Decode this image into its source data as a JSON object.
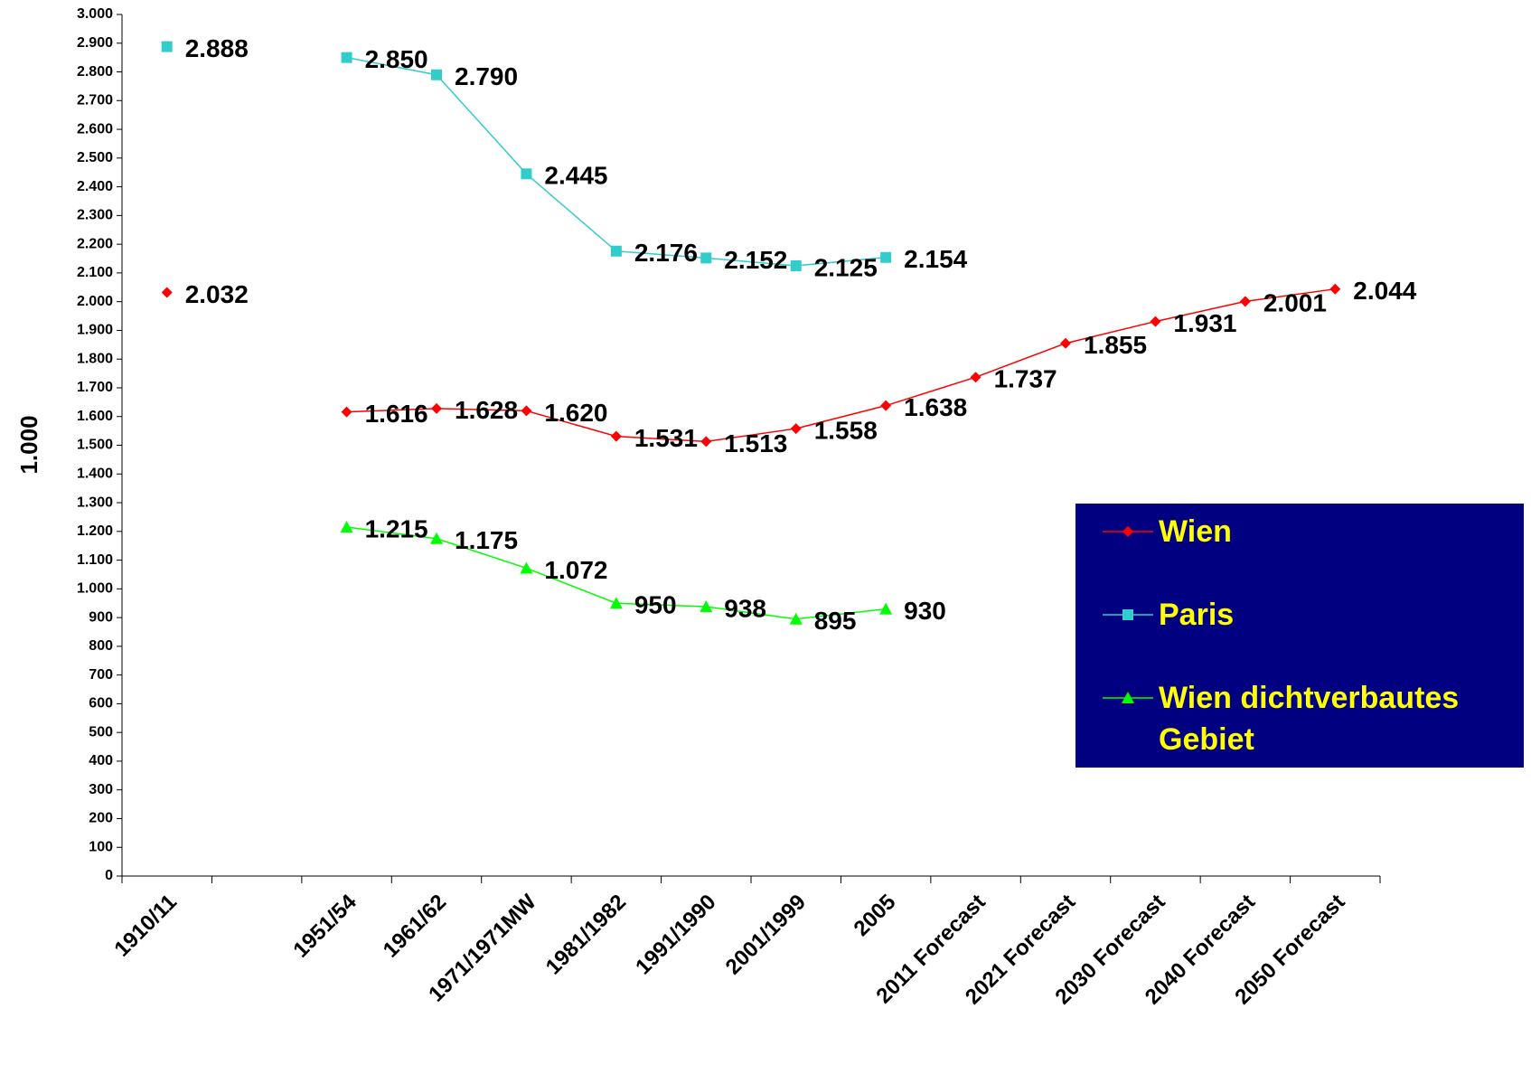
{
  "chart_data": {
    "type": "line",
    "y_label": "1.000",
    "categories": [
      "1910/11",
      null,
      "1951/54",
      "1961/62",
      "1971/1971MW",
      "1981/1982",
      "1991/1990",
      "2001/1999",
      "2005",
      "2011 Forecast",
      "2021 Forecast",
      "2030 Forecast",
      "2040 Forecast",
      "2050 Forecast"
    ],
    "series": [
      {
        "name": "Wien",
        "color": "#ff0000",
        "marker": "diamond",
        "values": [
          2032,
          null,
          1616,
          1628,
          1620,
          1531,
          1513,
          1558,
          1638,
          1737,
          1855,
          1931,
          2001,
          2044
        ],
        "value_labels": [
          "2.032",
          null,
          "1.616",
          "1.628",
          "1.620",
          "1.531",
          "1.513",
          "1.558",
          "1.638",
          "1.737",
          "1.855",
          "1.931",
          "2.001",
          "2.044"
        ]
      },
      {
        "name": "Paris",
        "color": "#33cccc",
        "marker": "square",
        "values": [
          2888,
          null,
          2850,
          2790,
          2445,
          2176,
          2152,
          2125,
          2154,
          null,
          null,
          null,
          null,
          null
        ],
        "value_labels": [
          "2.888",
          null,
          "2.850",
          "2.790",
          "2.445",
          "2.176",
          "2.152",
          "2.125",
          "2.154",
          null,
          null,
          null,
          null,
          null
        ]
      },
      {
        "name": "Wien dichtverbautes Gebiet",
        "color": "#00ff00",
        "marker": "triangle",
        "values": [
          null,
          null,
          1215,
          1175,
          1072,
          950,
          938,
          895,
          930,
          null,
          null,
          null,
          null,
          null
        ],
        "value_labels": [
          null,
          null,
          "1.215",
          "1.175",
          "1.072",
          "950",
          "938",
          "895",
          "930",
          null,
          null,
          null,
          null,
          null
        ]
      }
    ],
    "ylim": [
      0,
      3000
    ],
    "yticks": [
      0,
      100,
      200,
      300,
      400,
      500,
      600,
      700,
      800,
      900,
      {
        "value": 1000,
        "label": "1.000"
      },
      {
        "value": 1100,
        "label": "1.100"
      },
      {
        "value": 1200,
        "label": "1.200"
      },
      {
        "value": 1300,
        "label": "1.300"
      },
      {
        "value": 1400,
        "label": "1.400"
      },
      {
        "value": 1500,
        "label": "1.500"
      },
      {
        "value": 1600,
        "label": "1.600"
      },
      {
        "value": 1700,
        "label": "1.700"
      },
      {
        "value": 1800,
        "label": "1.800"
      },
      {
        "value": 1900,
        "label": "1.900"
      },
      {
        "value": 2000,
        "label": "2.000"
      },
      {
        "value": 2100,
        "label": "2.100"
      },
      {
        "value": 2200,
        "label": "2.200"
      },
      {
        "value": 2300,
        "label": "2.300"
      },
      {
        "value": 2400,
        "label": "2.400"
      },
      {
        "value": 2500,
        "label": "2.500"
      },
      {
        "value": 2600,
        "label": "2.600"
      },
      {
        "value": 2700,
        "label": "2.700"
      },
      {
        "value": 2800,
        "label": "2.800"
      },
      {
        "value": 2900,
        "label": "2.900"
      },
      {
        "value": 3000,
        "label": "3.000"
      }
    ],
    "legend_position": "right"
  }
}
